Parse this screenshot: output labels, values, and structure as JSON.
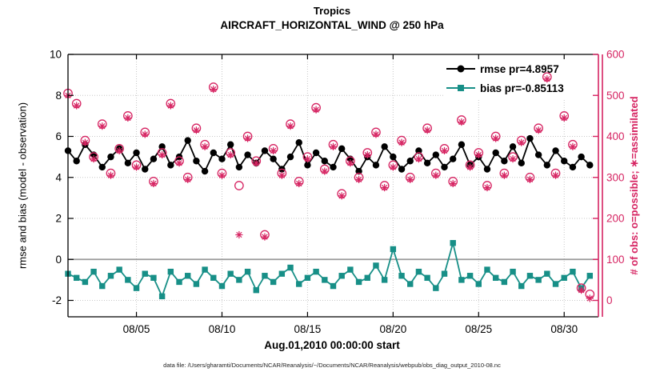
{
  "title": {
    "line1": "Tropics",
    "line2": "AIRCRAFT_HORIZONTAL_WIND @ 250 hPa"
  },
  "axes": {
    "left_label": "rmse and bias (model - observation)",
    "right_label": "# of obs: o=possible; ∗=assimilated",
    "x_label": "Aug.01,2010 00:00:00 start",
    "left_ticks": [
      -2,
      0,
      2,
      4,
      6,
      8,
      10
    ],
    "right_ticks": [
      0,
      100,
      200,
      300,
      400,
      500,
      600
    ],
    "x_ticks": [
      {
        "day": 4,
        "label": "08/05"
      },
      {
        "day": 9,
        "label": "08/10"
      },
      {
        "day": 14,
        "label": "08/15"
      },
      {
        "day": 19,
        "label": "08/20"
      },
      {
        "day": 24,
        "label": "08/25"
      },
      {
        "day": 29,
        "label": "08/30"
      }
    ]
  },
  "legend": [
    {
      "label": "rmse pr=4.8957",
      "series": "rmse"
    },
    {
      "label": "bias pr=-0.85113",
      "series": "bias"
    }
  ],
  "colors": {
    "rmse": "#000000",
    "bias": "#178f87",
    "obs": "#d62462",
    "grid": "#c8c8c8",
    "zero_line": "#9a9a9a",
    "frame": "#000000"
  },
  "footer": "data file: /Users/gharamti/Documents/NCAR/Reanalysis/~/Documents/NCAR/Reanalysis/webpub/obs_diag_output_2010-08.nc",
  "chart_data": {
    "type": "line",
    "title": "Tropics — AIRCRAFT_HORIZONTAL_WIND @ 250 hPa",
    "xlabel": "Aug.01,2010 00:00:00 start",
    "ylabel_left": "rmse and bias (model - observation)",
    "ylabel_right": "# of obs: o=possible; ∗=assimilated",
    "xlim_days": [
      0,
      31
    ],
    "ylim_left": [
      -2.8,
      10
    ],
    "ylim_right": [
      -40,
      600
    ],
    "grid": true,
    "legend_position": "top-right",
    "x_days": [
      0,
      0.5,
      1,
      1.5,
      2,
      2.5,
      3,
      3.5,
      4,
      4.5,
      5,
      5.5,
      6,
      6.5,
      7,
      7.5,
      8,
      8.5,
      9,
      9.5,
      10,
      10.5,
      11,
      11.5,
      12,
      12.5,
      13,
      13.5,
      14,
      14.5,
      15,
      15.5,
      16,
      16.5,
      17,
      17.5,
      18,
      18.5,
      19,
      19.5,
      20,
      20.5,
      21,
      21.5,
      22,
      22.5,
      23,
      23.5,
      24,
      24.5,
      25,
      25.5,
      26,
      26.5,
      27,
      27.5,
      28,
      28.5,
      29,
      29.5,
      30,
      30.5
    ],
    "series": [
      {
        "name": "rmse",
        "axis": "left",
        "marker": "circle-filled",
        "line": true,
        "color_key": "rmse",
        "mean": 4.8957,
        "values": [
          5.3,
          4.8,
          5.6,
          5.1,
          4.5,
          5.0,
          5.4,
          4.7,
          5.2,
          4.4,
          4.9,
          5.5,
          4.6,
          5.0,
          5.8,
          4.8,
          4.3,
          5.2,
          4.9,
          5.6,
          4.5,
          5.1,
          4.7,
          5.3,
          4.9,
          4.4,
          5.0,
          5.7,
          4.6,
          5.2,
          4.8,
          4.5,
          5.4,
          4.9,
          4.3,
          5.0,
          4.6,
          5.5,
          5.0,
          4.4,
          4.8,
          5.3,
          4.7,
          5.1,
          4.5,
          4.9,
          5.6,
          4.6,
          5.0,
          4.4,
          5.2,
          4.8,
          5.5,
          4.7,
          5.9,
          5.1,
          4.6,
          5.3,
          4.8,
          4.5,
          5.0,
          4.6
        ]
      },
      {
        "name": "bias",
        "axis": "left",
        "marker": "square-filled",
        "line": true,
        "color_key": "bias",
        "mean": -0.85113,
        "values": [
          -0.7,
          -0.9,
          -1.1,
          -0.6,
          -1.3,
          -0.8,
          -0.5,
          -1.0,
          -1.4,
          -0.7,
          -0.9,
          -1.8,
          -0.6,
          -1.1,
          -0.8,
          -1.2,
          -0.5,
          -0.9,
          -1.3,
          -0.7,
          -1.0,
          -0.6,
          -1.5,
          -0.8,
          -1.1,
          -0.7,
          -0.4,
          -1.2,
          -0.9,
          -0.6,
          -1.0,
          -1.3,
          -0.8,
          -0.5,
          -1.1,
          -0.9,
          -0.3,
          -1.0,
          0.5,
          -0.8,
          -1.2,
          -0.6,
          -0.9,
          -1.4,
          -0.7,
          0.8,
          -1.0,
          -0.8,
          -1.2,
          -0.5,
          -0.9,
          -1.1,
          -0.6,
          -1.3,
          -0.8,
          -1.0,
          -0.7,
          -1.2,
          -0.9,
          -0.6,
          -1.4,
          -0.8
        ]
      },
      {
        "name": "possible_obs",
        "axis": "right",
        "marker": "circle-open",
        "line": false,
        "color_key": "obs",
        "values": [
          505,
          480,
          390,
          350,
          430,
          310,
          370,
          450,
          330,
          410,
          290,
          360,
          480,
          340,
          300,
          420,
          380,
          520,
          310,
          360,
          280,
          400,
          340,
          160,
          370,
          310,
          430,
          290,
          350,
          470,
          320,
          380,
          260,
          340,
          300,
          360,
          410,
          280,
          330,
          390,
          300,
          350,
          420,
          310,
          370,
          290,
          440,
          330,
          360,
          280,
          400,
          310,
          350,
          390,
          300,
          420,
          545,
          310,
          450,
          380,
          30,
          15
        ]
      },
      {
        "name": "assimilated_obs",
        "axis": "right",
        "marker": "asterisk",
        "line": false,
        "color_key": "obs",
        "values": [
          500,
          475,
          385,
          345,
          425,
          305,
          365,
          445,
          325,
          405,
          285,
          355,
          475,
          335,
          295,
          415,
          375,
          515,
          305,
          355,
          160,
          395,
          335,
          155,
          365,
          305,
          425,
          285,
          345,
          465,
          315,
          375,
          255,
          335,
          295,
          355,
          405,
          275,
          325,
          385,
          295,
          345,
          415,
          305,
          365,
          285,
          435,
          325,
          355,
          275,
          395,
          305,
          345,
          385,
          295,
          415,
          540,
          305,
          445,
          375,
          25,
          5
        ]
      }
    ]
  }
}
